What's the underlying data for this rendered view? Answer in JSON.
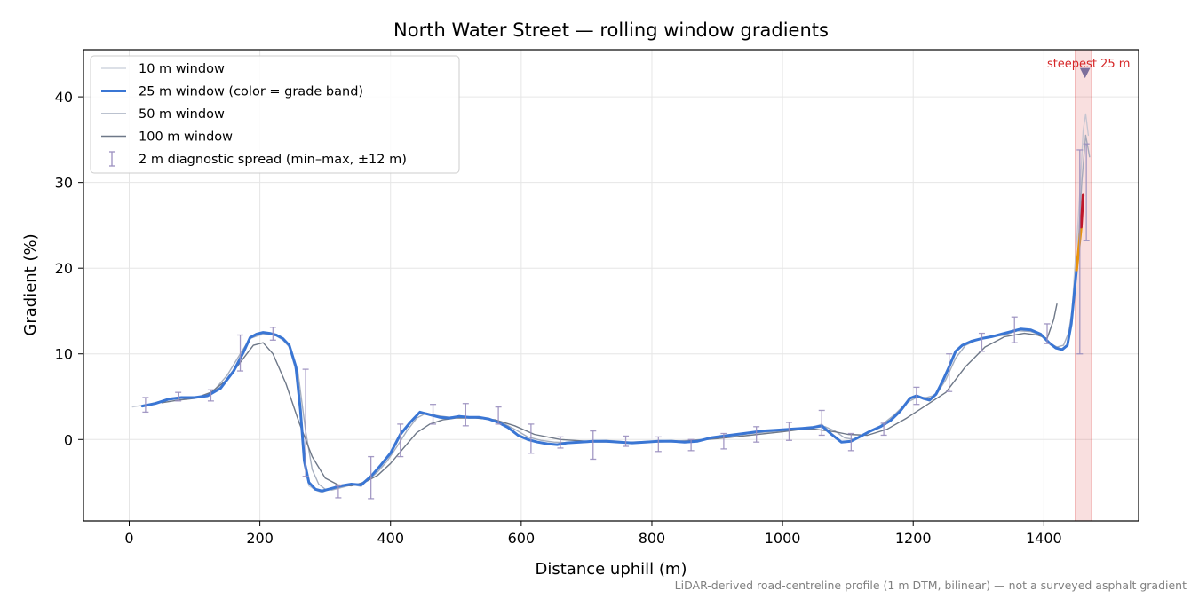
{
  "chart_data": {
    "type": "line",
    "title": "North Water Street — rolling window gradients",
    "xlabel": "Distance uphill (m)",
    "ylabel": "Gradient (%)",
    "xlim": [
      -70,
      1545
    ],
    "ylim": [
      -9.5,
      45.5
    ],
    "x_ticks": [
      0,
      200,
      400,
      600,
      800,
      1000,
      1200,
      1400
    ],
    "y_ticks": [
      0,
      10,
      20,
      30,
      40
    ],
    "grid": true,
    "legend_position": "top-left",
    "footnote": "LiDAR-derived road-centreline profile (1 m DTM, bilinear) — not a surveyed asphalt gradient",
    "highlight": {
      "x_range": [
        1448,
        1473
      ],
      "label": "steepest 25 m",
      "marker": [
        1463,
        42.8
      ],
      "color": "#d62728"
    },
    "series": [
      {
        "name": "10 m window",
        "color": "#b4bccc",
        "x": [
          5,
          20,
          40,
          60,
          80,
          100,
          120,
          140,
          160,
          175,
          185,
          195,
          205,
          215,
          225,
          235,
          245,
          255,
          262,
          268,
          275,
          285,
          295,
          305,
          315,
          325,
          340,
          355,
          370,
          385,
          400,
          415,
          430,
          445,
          460,
          475,
          490,
          505,
          520,
          535,
          550,
          565,
          580,
          595,
          610,
          625,
          640,
          655,
          670,
          690,
          710,
          730,
          750,
          770,
          790,
          810,
          830,
          850,
          870,
          890,
          910,
          930,
          950,
          970,
          990,
          1010,
          1030,
          1045,
          1060,
          1075,
          1090,
          1105,
          1120,
          1135,
          1150,
          1165,
          1180,
          1195,
          1205,
          1215,
          1225,
          1235,
          1245,
          1255,
          1265,
          1275,
          1290,
          1305,
          1320,
          1335,
          1350,
          1365,
          1380,
          1395,
          1408,
          1418,
          1428,
          1436,
          1442,
          1447,
          1452,
          1456,
          1460,
          1464,
          1468
        ],
        "values": [
          3.8,
          4.0,
          4.2,
          4.8,
          5.0,
          4.9,
          5.2,
          6.2,
          8.2,
          10.5,
          12.0,
          12.4,
          12.5,
          12.4,
          12.1,
          11.6,
          10.8,
          8.0,
          3.0,
          -3.0,
          -5.4,
          -5.9,
          -6.2,
          -5.8,
          -5.6,
          -5.3,
          -5.2,
          -5.5,
          -4.2,
          -3.0,
          -1.5,
          0.8,
          2.0,
          3.3,
          2.8,
          2.6,
          2.4,
          2.8,
          2.5,
          2.6,
          2.4,
          2.0,
          1.5,
          0.5,
          0.0,
          -0.3,
          -0.5,
          -0.6,
          -0.4,
          -0.3,
          -0.2,
          -0.1,
          -0.2,
          -0.4,
          -0.3,
          -0.2,
          -0.1,
          -0.3,
          -0.2,
          0.2,
          0.4,
          0.6,
          0.8,
          1.0,
          1.1,
          1.2,
          1.3,
          1.4,
          1.8,
          0.7,
          -0.3,
          -0.2,
          0.4,
          1.0,
          1.5,
          2.2,
          3.2,
          4.8,
          5.2,
          4.8,
          4.5,
          5.3,
          6.8,
          8.5,
          10.2,
          11.0,
          11.5,
          11.8,
          12.1,
          12.3,
          12.6,
          12.9,
          12.8,
          12.2,
          11.2,
          10.6,
          10.4,
          11.0,
          13.5,
          19.8,
          25.0,
          30.0,
          36.0,
          38.0,
          35.5
        ]
      },
      {
        "name": "25 m window (color = grade band)",
        "color": "#3a76d4",
        "x": [
          20,
          40,
          60,
          80,
          100,
          120,
          140,
          160,
          175,
          185,
          195,
          205,
          215,
          225,
          235,
          245,
          255,
          262,
          268,
          275,
          285,
          295,
          305,
          315,
          325,
          340,
          355,
          370,
          385,
          400,
          415,
          430,
          445,
          460,
          475,
          490,
          505,
          520,
          535,
          550,
          565,
          580,
          595,
          610,
          625,
          640,
          655,
          670,
          690,
          710,
          730,
          750,
          770,
          790,
          810,
          830,
          850,
          870,
          890,
          910,
          930,
          950,
          970,
          990,
          1010,
          1030,
          1045,
          1060,
          1075,
          1090,
          1105,
          1120,
          1135,
          1150,
          1165,
          1180,
          1195,
          1205,
          1215,
          1225,
          1235,
          1245,
          1255,
          1265,
          1275,
          1290,
          1305,
          1320,
          1335,
          1350,
          1365,
          1380,
          1395,
          1408,
          1418,
          1428,
          1436,
          1442,
          1447,
          1450
        ],
        "values": [
          3.9,
          4.2,
          4.7,
          4.9,
          4.9,
          5.1,
          6.0,
          8.0,
          10.2,
          11.9,
          12.3,
          12.5,
          12.4,
          12.2,
          11.8,
          11.0,
          8.5,
          3.5,
          -2.5,
          -5.0,
          -5.8,
          -6.0,
          -5.8,
          -5.6,
          -5.4,
          -5.2,
          -5.3,
          -4.3,
          -3.0,
          -1.6,
          0.6,
          2.0,
          3.2,
          2.9,
          2.6,
          2.5,
          2.7,
          2.6,
          2.6,
          2.4,
          2.0,
          1.4,
          0.5,
          0.0,
          -0.3,
          -0.5,
          -0.6,
          -0.4,
          -0.3,
          -0.2,
          -0.2,
          -0.3,
          -0.4,
          -0.3,
          -0.2,
          -0.2,
          -0.3,
          -0.2,
          0.2,
          0.4,
          0.6,
          0.8,
          1.0,
          1.1,
          1.2,
          1.3,
          1.4,
          1.6,
          0.6,
          -0.3,
          -0.2,
          0.4,
          1.0,
          1.5,
          2.2,
          3.3,
          4.8,
          5.1,
          4.8,
          4.6,
          5.3,
          6.8,
          8.5,
          10.3,
          11.0,
          11.5,
          11.8,
          12.0,
          12.3,
          12.6,
          12.9,
          12.8,
          12.3,
          11.3,
          10.7,
          10.5,
          11.0,
          13.5,
          17.5,
          19.8
        ]
      },
      {
        "name": "50 m window",
        "color": "#95a0b4",
        "x": [
          25,
          50,
          75,
          100,
          125,
          150,
          170,
          185,
          200,
          215,
          230,
          245,
          258,
          270,
          280,
          290,
          300,
          310,
          320,
          335,
          350,
          365,
          380,
          395,
          410,
          425,
          440,
          455,
          470,
          490,
          510,
          530,
          550,
          570,
          590,
          610,
          630,
          650,
          680,
          710,
          740,
          770,
          800,
          830,
          860,
          890,
          920,
          950,
          980,
          1010,
          1030,
          1050,
          1065,
          1080,
          1095,
          1110,
          1130,
          1150,
          1170,
          1190,
          1205,
          1220,
          1235,
          1250,
          1265,
          1280,
          1300,
          1320,
          1340,
          1360,
          1380,
          1395,
          1410,
          1420,
          1430,
          1438,
          1445,
          1452,
          1458,
          1464,
          1470
        ],
        "values": [
          4.0,
          4.5,
          4.8,
          4.9,
          5.3,
          7.5,
          10.0,
          11.8,
          12.2,
          12.3,
          12.0,
          11.0,
          8.0,
          1.0,
          -3.5,
          -5.2,
          -5.8,
          -5.9,
          -5.7,
          -5.4,
          -5.2,
          -4.8,
          -3.8,
          -2.5,
          -0.8,
          1.0,
          2.5,
          3.1,
          2.8,
          2.6,
          2.7,
          2.6,
          2.4,
          2.0,
          1.2,
          0.3,
          -0.1,
          -0.3,
          -0.4,
          -0.3,
          -0.3,
          -0.3,
          -0.2,
          -0.2,
          -0.1,
          0.1,
          0.4,
          0.7,
          0.9,
          1.1,
          1.2,
          1.4,
          1.5,
          1.0,
          0.2,
          0.0,
          0.7,
          1.6,
          2.8,
          4.3,
          4.9,
          4.9,
          5.2,
          7.0,
          9.5,
          11.0,
          11.7,
          12.0,
          12.2,
          12.7,
          12.6,
          12.2,
          11.2,
          10.8,
          11.0,
          12.5,
          16.0,
          22.0,
          30.0,
          35.5,
          33.0
        ]
      },
      {
        "name": "100 m window",
        "color": "#6e7888",
        "x": [
          50,
          75,
          100,
          125,
          150,
          170,
          190,
          205,
          220,
          240,
          260,
          280,
          300,
          320,
          340,
          360,
          380,
          400,
          420,
          440,
          460,
          480,
          500,
          530,
          560,
          590,
          620,
          660,
          700,
          750,
          800,
          850,
          900,
          950,
          1000,
          1030,
          1050,
          1080,
          1100,
          1130,
          1160,
          1190,
          1220,
          1250,
          1280,
          1310,
          1340,
          1370,
          1390,
          1405,
          1415,
          1420
        ],
        "values": [
          4.3,
          4.6,
          4.8,
          5.5,
          7.0,
          9.0,
          11.0,
          11.3,
          10.0,
          6.5,
          2.0,
          -2.0,
          -4.5,
          -5.3,
          -5.4,
          -5.0,
          -4.2,
          -2.8,
          -1.0,
          0.8,
          1.8,
          2.3,
          2.5,
          2.5,
          2.3,
          1.6,
          0.6,
          0.0,
          -0.2,
          -0.3,
          -0.3,
          -0.2,
          0.1,
          0.5,
          0.9,
          1.2,
          1.2,
          0.9,
          0.6,
          0.5,
          1.2,
          2.5,
          4.0,
          5.5,
          8.5,
          10.8,
          12.0,
          12.4,
          12.2,
          11.8,
          14.0,
          15.8
        ]
      }
    ],
    "grade_band_segments": [
      {
        "color": "#e8930c",
        "x": [
          1450,
          1457
        ],
        "values": [
          19.8,
          24.8
        ]
      },
      {
        "color": "#c0172a",
        "x": [
          1457,
          1460
        ],
        "values": [
          24.8,
          28.5
        ]
      }
    ],
    "spread": {
      "name": "2 m diagnostic spread (min–max, ±12 m)",
      "color": "#9a8fbf",
      "x": [
        25,
        75,
        125,
        170,
        220,
        270,
        320,
        370,
        415,
        465,
        515,
        565,
        615,
        660,
        710,
        760,
        810,
        860,
        910,
        960,
        1010,
        1060,
        1105,
        1155,
        1205,
        1255,
        1305,
        1355,
        1405,
        1455,
        1465
      ],
      "low": [
        3.2,
        4.5,
        4.5,
        8.0,
        11.6,
        -4.3,
        -6.8,
        -6.9,
        -2.0,
        1.8,
        1.6,
        1.8,
        -1.6,
        -1.0,
        -2.3,
        -0.8,
        -1.4,
        -1.3,
        -1.1,
        -0.3,
        -0.1,
        0.5,
        -1.3,
        0.5,
        4.1,
        5.6,
        10.3,
        11.3,
        11.2,
        10.0,
        23.2
      ],
      "high": [
        4.9,
        5.5,
        5.8,
        12.2,
        13.1,
        8.2,
        -5.4,
        -2.0,
        1.8,
        4.1,
        4.2,
        3.8,
        1.8,
        0.3,
        1.0,
        0.4,
        0.3,
        0.0,
        0.7,
        1.5,
        2.0,
        3.4,
        0.7,
        1.9,
        6.1,
        10.0,
        12.4,
        14.3,
        13.5,
        33.8,
        34.5
      ]
    }
  }
}
